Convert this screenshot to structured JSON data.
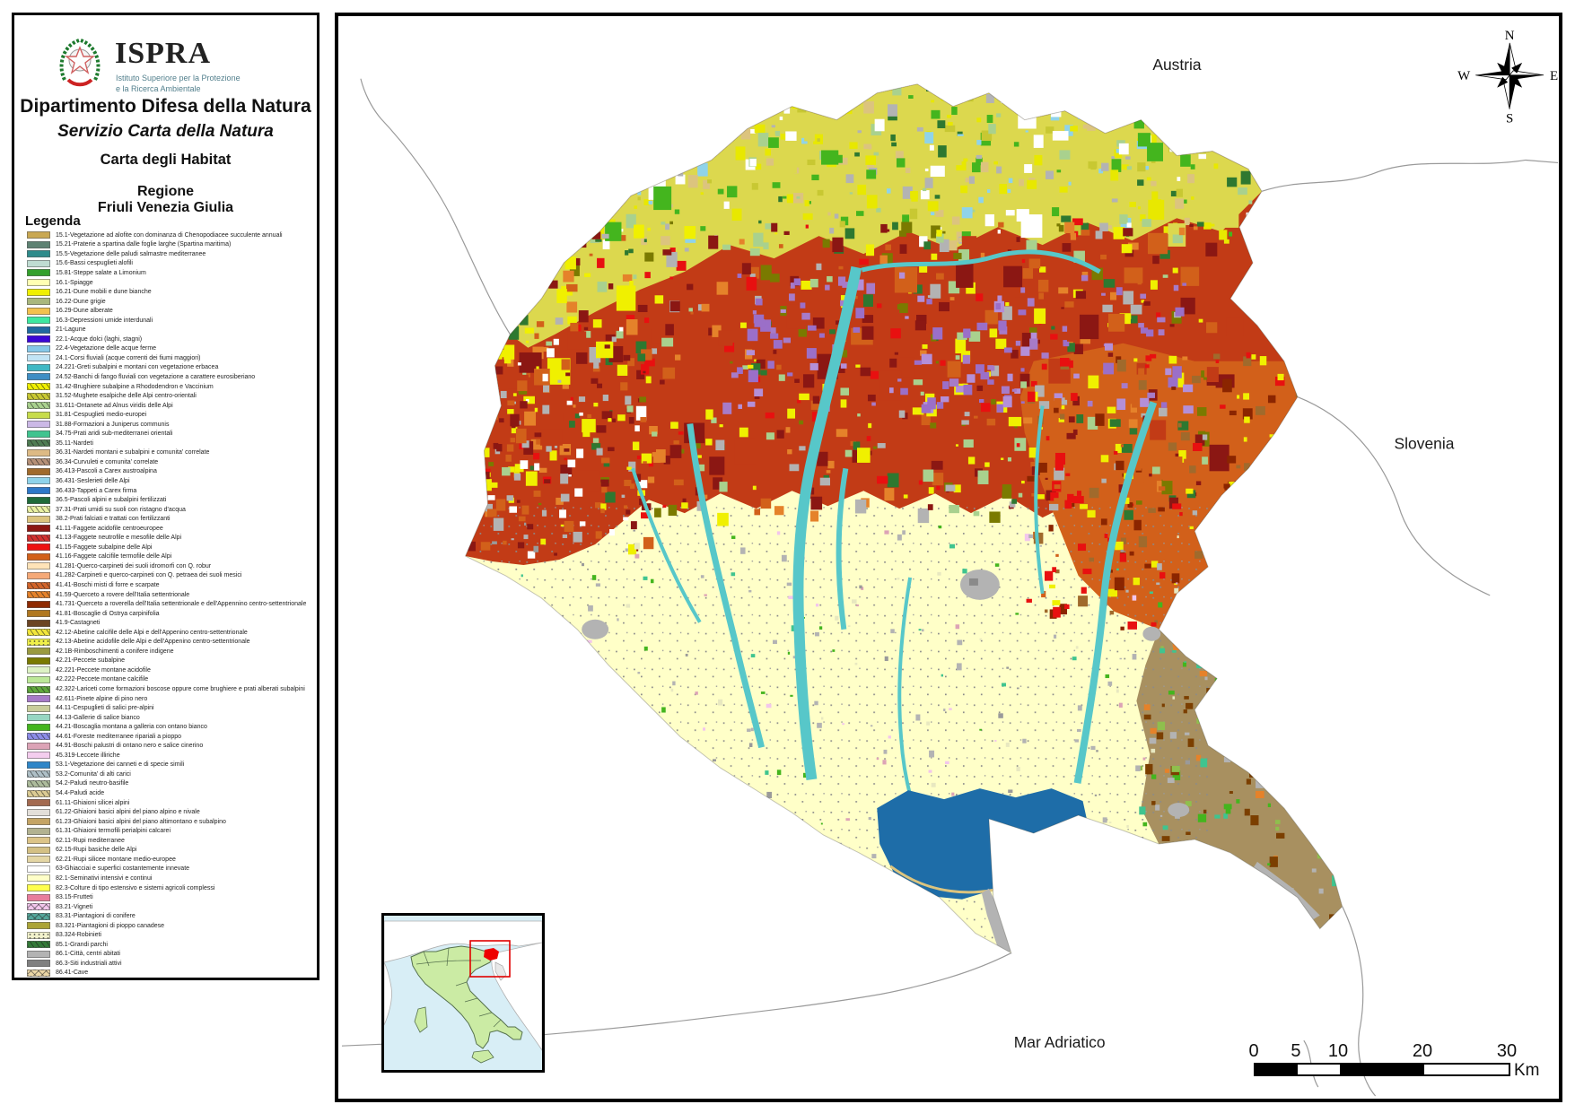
{
  "panel": {
    "logo": {
      "acronym": "ISPRA",
      "subtitle_line1": "Istituto Superiore per la Protezione",
      "subtitle_line2": "e la Ricerca Ambientale"
    },
    "department": "Dipartimento Difesa della Natura",
    "service": "Servizio Carta della Natura",
    "map_title": "Carta degli Habitat",
    "region_label_line1": "Regione",
    "region_label_line2": "Friuli Venezia Giulia",
    "legend_title": "Legenda"
  },
  "legend_items": [
    {
      "text": "15.1-Vegetazione ad alofite con dominanza di Chenopodiacee succulente annuali",
      "color": "#C9A852",
      "pattern": null
    },
    {
      "text": "15.21-Praterie a spartina dalle foglie larghe (Spartina maritima)",
      "color": "#5E8273",
      "pattern": null
    },
    {
      "text": "15.5-Vegetazione delle paludi salmastre mediterranee",
      "color": "#2E8B8B",
      "pattern": null
    },
    {
      "text": "15.6-Bassi cespuglieti alofili",
      "color": "#BFDCD2",
      "pattern": null
    },
    {
      "text": "15.81-Steppe salate a Limonium",
      "color": "#33A02C",
      "pattern": null
    },
    {
      "text": "16.1-Spiagge",
      "color": "#FFFFB3",
      "pattern": null
    },
    {
      "text": "16.21-Dune mobili e dune bianche",
      "color": "#F0F000",
      "pattern": null
    },
    {
      "text": "16.22-Dune grigie",
      "color": "#A9B77D",
      "pattern": null
    },
    {
      "text": "16.29-Dune alberate",
      "color": "#F2C14E",
      "pattern": null
    },
    {
      "text": "16.3-Depressioni umide interdunali",
      "color": "#3DE8A0",
      "pattern": null
    },
    {
      "text": "21-Lagune",
      "color": "#2069A0",
      "pattern": null
    },
    {
      "text": "22.1-Acque dolci (laghi, stagni)",
      "color": "#3A06D6",
      "pattern": null
    },
    {
      "text": "22.4-Vegetazione delle acque ferme",
      "color": "#86C8E8",
      "pattern": null
    },
    {
      "text": "24.1-Corsi fluviali (acque correnti dei fiumi maggiori)",
      "color": "#C2E4F5",
      "pattern": null
    },
    {
      "text": "24.221-Greti subalpini e montani con vegetazione erbacea",
      "color": "#3FB8C4",
      "pattern": null
    },
    {
      "text": "24.52-Banchi di fango fluviali con vegetazione a carattere eurosiberiano",
      "color": "#3E8EC4",
      "pattern": null
    },
    {
      "text": "31.42-Brughiere subalpine a Rhododendron e Vaccinium",
      "color": "#F0F000",
      "pattern": "marks"
    },
    {
      "text": "31.52-Mughete esalpiche delle Alpi centro-orientali",
      "color": "#C8C832",
      "pattern": "marks"
    },
    {
      "text": "31.611-Ontanete ad Alnus viridis delle Alpi",
      "color": "#A9D18E",
      "pattern": "marks"
    },
    {
      "text": "31.81-Cespuglieti medio-europei",
      "color": "#C7DC4B",
      "pattern": null
    },
    {
      "text": "31.88-Formazioni a Juniperus communis",
      "color": "#CBB8E6",
      "pattern": null
    },
    {
      "text": "34.75-Prati aridi sub-mediterranei orientali",
      "color": "#3FC48F",
      "pattern": null
    },
    {
      "text": "35.11-Nardeti",
      "color": "#4E7C52",
      "pattern": "marks"
    },
    {
      "text": "36.31-Nardeti montani e subalpini e comunita' correlate",
      "color": "#DDBA85",
      "pattern": null
    },
    {
      "text": "36.34-Curvuleti e comunita' correlate",
      "color": "#B59077",
      "pattern": "marks"
    },
    {
      "text": "36.413-Pascoli a Carex austroalpina",
      "color": "#A06A2C",
      "pattern": null
    },
    {
      "text": "36.431-Seslerieti delle Alpi",
      "color": "#8FD3EA",
      "pattern": null
    },
    {
      "text": "36.433-Tappeti a Carex firma",
      "color": "#2E78C8",
      "pattern": null
    },
    {
      "text": "36.5-Pascoli alpini e subalpini fertilizzati",
      "color": "#1F6B3A",
      "pattern": null
    },
    {
      "text": "37.31-Prati umidi su suoli con ristagno d'acqua",
      "color": "#E9F0A2",
      "pattern": "marks"
    },
    {
      "text": "38.2-Prati falciati e trattati con fertilizzanti",
      "color": "#DCC47E",
      "pattern": null
    },
    {
      "text": "41.11-Faggete acidofile centroeuropee",
      "color": "#8C1713",
      "pattern": null
    },
    {
      "text": "41.13-Faggete neutrofile e mesofile delle Alpi",
      "color": "#D43030",
      "pattern": "marks"
    },
    {
      "text": "41.15-Faggete subalpine delle Alpi",
      "color": "#EE1111",
      "pattern": null
    },
    {
      "text": "41.16-Faggete calcifile termofile delle Alpi",
      "color": "#D2601A",
      "pattern": null
    },
    {
      "text": "41.281-Querco-carpineti dei suoli idromorfi con Q. robur",
      "color": "#FFE3B8",
      "pattern": null
    },
    {
      "text": "41.282-Carpineti e querco-carpineti con Q. petraea dei suoli mesici",
      "color": "#F5A978",
      "pattern": null
    },
    {
      "text": "41.41-Boschi misti di forre e scarpate",
      "color": "#D2642A",
      "pattern": "marks"
    },
    {
      "text": "41.59-Querceto a rovere dell'Italia settentrionale",
      "color": "#E5822A",
      "pattern": "marks"
    },
    {
      "text": "41.731-Querceto a roverella dell'Italia settentrionale e dell'Appennino centro-settentrionale",
      "color": "#8F2A00",
      "pattern": null
    },
    {
      "text": "41.81-Boscaglie di Ostrya carpinifolia",
      "color": "#B07820",
      "pattern": null
    },
    {
      "text": "41.9-Castagneti",
      "color": "#6B4423",
      "pattern": null
    },
    {
      "text": "42.12-Abetine calcifile delle Alpi e dell'Appenino centro-settentrionale",
      "color": "#F2E63A",
      "pattern": "marks"
    },
    {
      "text": "42.13-Abetine acidofile delle Alpi e dell'Appenino centro-settentrionale",
      "color": "#F0F04A",
      "pattern": "dots"
    },
    {
      "text": "42.1B-Rimboschimenti a conifere indigene",
      "color": "#9A9A40",
      "pattern": null
    },
    {
      "text": "42.21-Peccete subalpine",
      "color": "#7A7A00",
      "pattern": null
    },
    {
      "text": "42.221-Peccete montane acidofile",
      "color": "#DDF2C4",
      "pattern": null
    },
    {
      "text": "42.222-Peccete montane calcifile",
      "color": "#BCE898",
      "pattern": null
    },
    {
      "text": "42.322-Lariceti come formazioni boscose oppure come brughiere e prati alberati subalpini",
      "color": "#5FA83C",
      "pattern": "marks"
    },
    {
      "text": "42.611-Pinete alpine di pino nero",
      "color": "#A77BC8",
      "pattern": null
    },
    {
      "text": "44.11-Cespuglieti di salici pre-alpini",
      "color": "#C9CD9B",
      "pattern": null
    },
    {
      "text": "44.13-Gallerie di salice bianco",
      "color": "#97D6C2",
      "pattern": null
    },
    {
      "text": "44.21-Boscaglia montana a galleria con ontano bianco",
      "color": "#44B51E",
      "pattern": null
    },
    {
      "text": "44.61-Foreste mediterranee ripariali a pioppo",
      "color": "#8C8CE8",
      "pattern": "marks"
    },
    {
      "text": "44.91-Boschi palustri di ontano nero e salice cinerino",
      "color": "#DCA3B6",
      "pattern": null
    },
    {
      "text": "45.319-Leccete illiriche",
      "color": "#F4CDEE",
      "pattern": null
    },
    {
      "text": "53.1-Vegetazione dei canneti e di specie simili",
      "color": "#2E86C8",
      "pattern": null
    },
    {
      "text": "53.2-Comunita' di alti carici",
      "color": "#AEBFC6",
      "pattern": "marks"
    },
    {
      "text": "54.2-Paludi neutro-basifile",
      "color": "#ACBB9B",
      "pattern": "marks"
    },
    {
      "text": "54.4-Paludi acide",
      "color": "#DBCB93",
      "pattern": "marks"
    },
    {
      "text": "61.11-Ghiaioni silicei alpini",
      "color": "#A36A50",
      "pattern": null
    },
    {
      "text": "61.22-Ghiaioni basici alpini del piano alpino e nivale",
      "color": "#E3DFD9",
      "pattern": null
    },
    {
      "text": "61.23-Ghiaioni basici alpini del piano altimontano e subalpino",
      "color": "#C4A465",
      "pattern": null
    },
    {
      "text": "61.31-Ghiaioni termofili perialpini calcarei",
      "color": "#B2B291",
      "pattern": null
    },
    {
      "text": "62.11-Rupi mediterranee",
      "color": "#DCC488",
      "pattern": null
    },
    {
      "text": "62.15-Rupi basiche delle Alpi",
      "color": "#D4C084",
      "pattern": null
    },
    {
      "text": "62.21-Rupi silicee montane medio-europee",
      "color": "#E4D6A4",
      "pattern": null
    },
    {
      "text": "63-Ghiacciai e superfici costantemente innevate",
      "color": "#FFFFFF",
      "pattern": null
    },
    {
      "text": "82.1-Seminativi intensivi e continui",
      "color": "#FFFFC8",
      "pattern": null
    },
    {
      "text": "82.3-Colture di tipo estensivo e sistemi agricoli complessi",
      "color": "#FFFF4D",
      "pattern": null
    },
    {
      "text": "83.15-Frutteti",
      "color": "#E87D9C",
      "pattern": null
    },
    {
      "text": "83.21-Vigneti",
      "color": "#F2C6EC",
      "pattern": "x"
    },
    {
      "text": "83.31-Piantagioni di conifere",
      "color": "#55A79B",
      "pattern": "x"
    },
    {
      "text": "83.321-Piantagioni di pioppo canadese",
      "color": "#ABA437",
      "pattern": null
    },
    {
      "text": "83.324-Robinieti",
      "color": "#F2F2CC",
      "pattern": "dots"
    },
    {
      "text": "85.1-Grandi parchi",
      "color": "#337A38",
      "pattern": "marks"
    },
    {
      "text": "86.1-Città, centri abitati",
      "color": "#B3B3B3",
      "pattern": null
    },
    {
      "text": "86.3-Siti industriali attivi",
      "color": "#808080",
      "pattern": null
    },
    {
      "text": "86.41-Cave",
      "color": "#EBD6A6",
      "pattern": "x"
    }
  ],
  "map": {
    "labels": {
      "country_north": "Austria",
      "country_east": "Slovenia",
      "sea": "Mar Adriatico"
    },
    "compass": {
      "north": "N",
      "east": "E",
      "south": "S",
      "west": "W"
    },
    "scalebar": {
      "tick_labels": [
        "0",
        "5",
        "10",
        "20",
        "30"
      ],
      "unit": "Km"
    }
  }
}
